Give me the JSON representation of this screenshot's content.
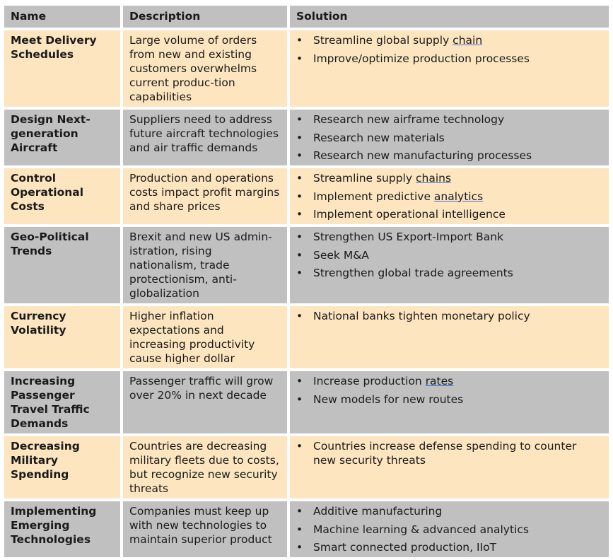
{
  "headers": [
    "Name",
    "Description",
    "Solution"
  ],
  "rows": [
    {
      "name": "Meet Delivery Schedules",
      "description": "Large volume of orders from new and existing customers overwhelms current produc-tion capabilities",
      "solutions": [
        "Streamline global supply chain",
        "Improve/optimize production processes"
      ]
    },
    {
      "name": "Design Next-generation Aircraft",
      "description": "Suppliers need to address future aircraft technologies and air traffic demands",
      "solutions": [
        "Research new airframe technology",
        "Research new materials",
        "Research new manufacturing processes"
      ]
    },
    {
      "name": "Control Operational Costs",
      "description": "Production and operations costs impact profit margins and share prices",
      "solutions": [
        "Streamline supply chains",
        "Implement predictive analytics",
        "Implement operational intelligence"
      ]
    },
    {
      "name": "Geo-Political Trends",
      "description": "Brexit and new US admin-istration, rising nationalism, trade protectionism, anti-globalization",
      "solutions": [
        "Strengthen US Export-Import Bank",
        "Seek M&A",
        "Strengthen global trade agreements"
      ]
    },
    {
      "name": "Currency Volatility",
      "description": "Higher inflation expectations and increasing productivity cause higher dollar",
      "solutions": [
        "National banks tighten monetary policy"
      ]
    },
    {
      "name": "Increasing Passenger Travel Traffic Demands",
      "description": "Passenger traffic will grow over 20% in next decade",
      "solutions": [
        "Increase production rates",
        "New models for new routes"
      ]
    },
    {
      "name": "Decreasing Military Spending",
      "description": "Countries are decreasing military fleets due to costs, but recognize new security threats",
      "solutions": [
        "Countries increase defense spending to counter new security threats"
      ]
    },
    {
      "name": "Implementing Emerging Technologies",
      "description": "Companies must keep up with new technologies to maintain superior product",
      "solutions": [
        "Additive manufacturing",
        "Machine learning & advanced analytics",
        "Smart connected production, IIoT"
      ]
    }
  ]
}
